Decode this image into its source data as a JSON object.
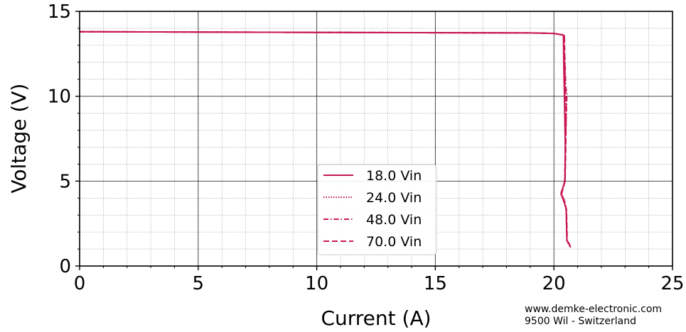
{
  "chart_data": {
    "type": "line",
    "xlabel": "Current (A)",
    "ylabel": "Voltage (V)",
    "xlim": [
      0,
      25
    ],
    "ylim": [
      0,
      15
    ],
    "x_ticks": [
      "0",
      "5",
      "10",
      "15",
      "20",
      "25"
    ],
    "y_ticks": [
      "0",
      "5",
      "10",
      "15"
    ],
    "grid": true,
    "legend_placement": "center-lower",
    "line_color": "#c8174f",
    "series": [
      {
        "name": "18.0 Vin",
        "style": "solid",
        "points": [
          [
            0,
            13.8
          ],
          [
            10,
            13.76
          ],
          [
            19,
            13.73
          ],
          [
            20.0,
            13.7
          ],
          [
            20.4,
            13.6
          ],
          [
            20.42,
            11.5
          ],
          [
            20.45,
            9.5
          ],
          [
            20.48,
            7.0
          ],
          [
            20.47,
            5.0
          ],
          [
            20.3,
            4.3
          ],
          [
            20.42,
            3.8
          ],
          [
            20.52,
            3.4
          ],
          [
            20.53,
            2.5
          ],
          [
            20.55,
            1.5
          ],
          [
            20.65,
            1.3
          ],
          [
            20.7,
            1.1
          ]
        ]
      },
      {
        "name": "24.0 Vin",
        "style": "dotted",
        "points": [
          [
            0,
            13.8
          ],
          [
            10,
            13.76
          ],
          [
            19,
            13.73
          ],
          [
            20.0,
            13.7
          ],
          [
            20.42,
            13.6
          ],
          [
            20.45,
            11.0
          ],
          [
            20.5,
            9.8
          ],
          [
            20.48,
            7.0
          ],
          [
            20.45,
            5.0
          ],
          [
            20.3,
            4.2
          ],
          [
            20.45,
            3.7
          ],
          [
            20.52,
            3.2
          ],
          [
            20.55,
            1.5
          ],
          [
            20.7,
            1.1
          ]
        ]
      },
      {
        "name": "48.0 Vin",
        "style": "dashdot",
        "points": [
          [
            0,
            13.8
          ],
          [
            10,
            13.76
          ],
          [
            19,
            13.73
          ],
          [
            20.0,
            13.7
          ],
          [
            20.43,
            13.6
          ],
          [
            20.5,
            10.5
          ],
          [
            20.55,
            10.2
          ],
          [
            20.48,
            7.0
          ],
          [
            20.46,
            5.0
          ],
          [
            20.33,
            4.3
          ],
          [
            20.45,
            3.8
          ],
          [
            20.52,
            3.3
          ],
          [
            20.55,
            1.5
          ],
          [
            20.7,
            1.1
          ]
        ]
      },
      {
        "name": "70.0 Vin",
        "style": "dashed",
        "points": [
          [
            0,
            13.8
          ],
          [
            10,
            13.76
          ],
          [
            19,
            13.73
          ],
          [
            20.0,
            13.7
          ],
          [
            20.44,
            13.6
          ],
          [
            20.47,
            10.8
          ],
          [
            20.52,
            9.6
          ],
          [
            20.5,
            7.0
          ],
          [
            20.47,
            5.0
          ],
          [
            20.32,
            4.25
          ],
          [
            20.46,
            3.75
          ],
          [
            20.53,
            3.3
          ],
          [
            20.56,
            1.5
          ],
          [
            20.7,
            1.1
          ]
        ]
      }
    ]
  },
  "credit": {
    "line1": "www.demke-electronic.com",
    "line2": "9500 Wil - Switzerland"
  }
}
